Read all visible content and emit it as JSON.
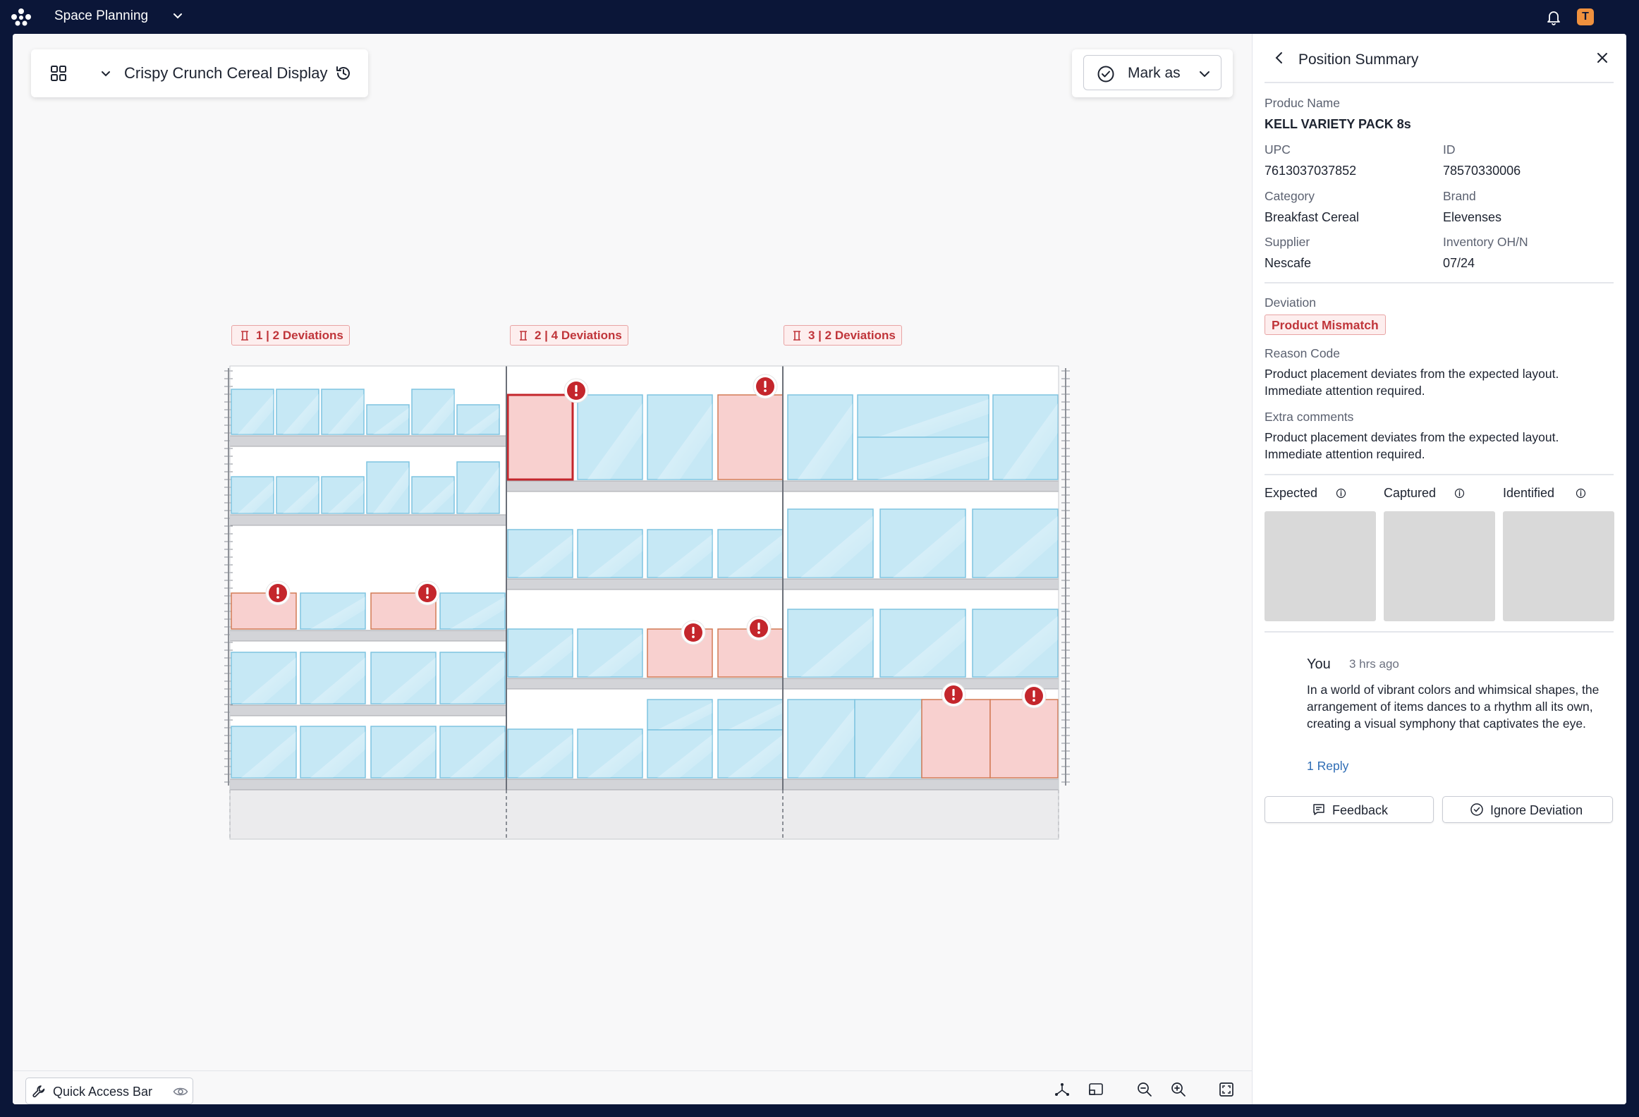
{
  "app": {
    "title": "Space Planning",
    "avatar_initial": "T"
  },
  "planogram_header": {
    "title": "Crispy Crunch Cereal Display",
    "mark_as_label": "Mark as"
  },
  "bays": [
    {
      "deviation_label": "1 | 2 Deviations"
    },
    {
      "deviation_label": "2 | 4 Deviations"
    },
    {
      "deviation_label": "3 | 2 Deviations"
    }
  ],
  "bottom_bar": {
    "quick_access_label": "Quick Access Bar"
  },
  "panel": {
    "title": "Position Summary",
    "product_name_label": "Produc Name",
    "product_name": "KELL VARIETY PACK 8s",
    "upc_label": "UPC",
    "upc": "7613037037852",
    "id_label": "ID",
    "id": "78570330006",
    "category_label": "Category",
    "category": "Breakfast Cereal",
    "brand_label": "Brand",
    "brand": "Elevenses",
    "supplier_label": "Supplier",
    "supplier": "Nescafe",
    "inventory_label": "Inventory OH/N",
    "inventory": "07/24",
    "deviation_label": "Deviation",
    "deviation": "Product Mismatch",
    "reason_code_label": "Reason Code",
    "reason_code_line1": "Product placement deviates from the expected layout.",
    "reason_code_line2": "Immediate attention required.",
    "extra_comments_label": "Extra comments",
    "extra_comments_line1": "Product placement deviates from the expected layout.",
    "extra_comments_line2": "Immediate attention required.",
    "image_labels": {
      "expected": "Expected",
      "captured": "Captured",
      "identified": "Identified"
    },
    "comment": {
      "author": "You",
      "time": "3 hrs ago",
      "text": "In a world of vibrant colors and whimsical shapes, the arrangement of items dances to a rhythm all its own, creating a visual symphony that captivates the eye.",
      "reply_link": "1 Reply"
    },
    "feedback_label": "Feedback",
    "ignore_label": "Ignore Deviation"
  },
  "colors": {
    "topbar": "#0b1638",
    "product_fill": "#c6e8f5",
    "product_stroke": "#7ec4e0",
    "deviation_fill": "#f8d0cf",
    "deviation_stroke": "#d27a55",
    "alert_red": "#c4262c",
    "tag_text": "#c0353a"
  }
}
